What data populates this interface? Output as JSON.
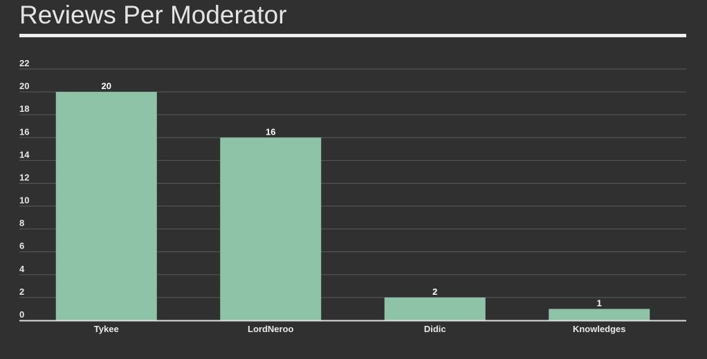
{
  "title": "Reviews Per Moderator",
  "colors": {
    "background": "#303030",
    "bar": "#8ec3a7",
    "grid": "#5a5a5a",
    "axis": "#e0e0e0",
    "text": "#e8e8e8"
  },
  "chart_data": {
    "type": "bar",
    "title": "Reviews Per Moderator",
    "categories": [
      "Tykee",
      "LordNeroo",
      "Didic",
      "Knowledges"
    ],
    "values": [
      20,
      16,
      2,
      1
    ],
    "ylim": [
      0,
      22
    ],
    "yticks": [
      0,
      2,
      4,
      6,
      8,
      10,
      12,
      14,
      16,
      18,
      20,
      22
    ],
    "grid": true,
    "data_labels": true,
    "legend": "none"
  }
}
